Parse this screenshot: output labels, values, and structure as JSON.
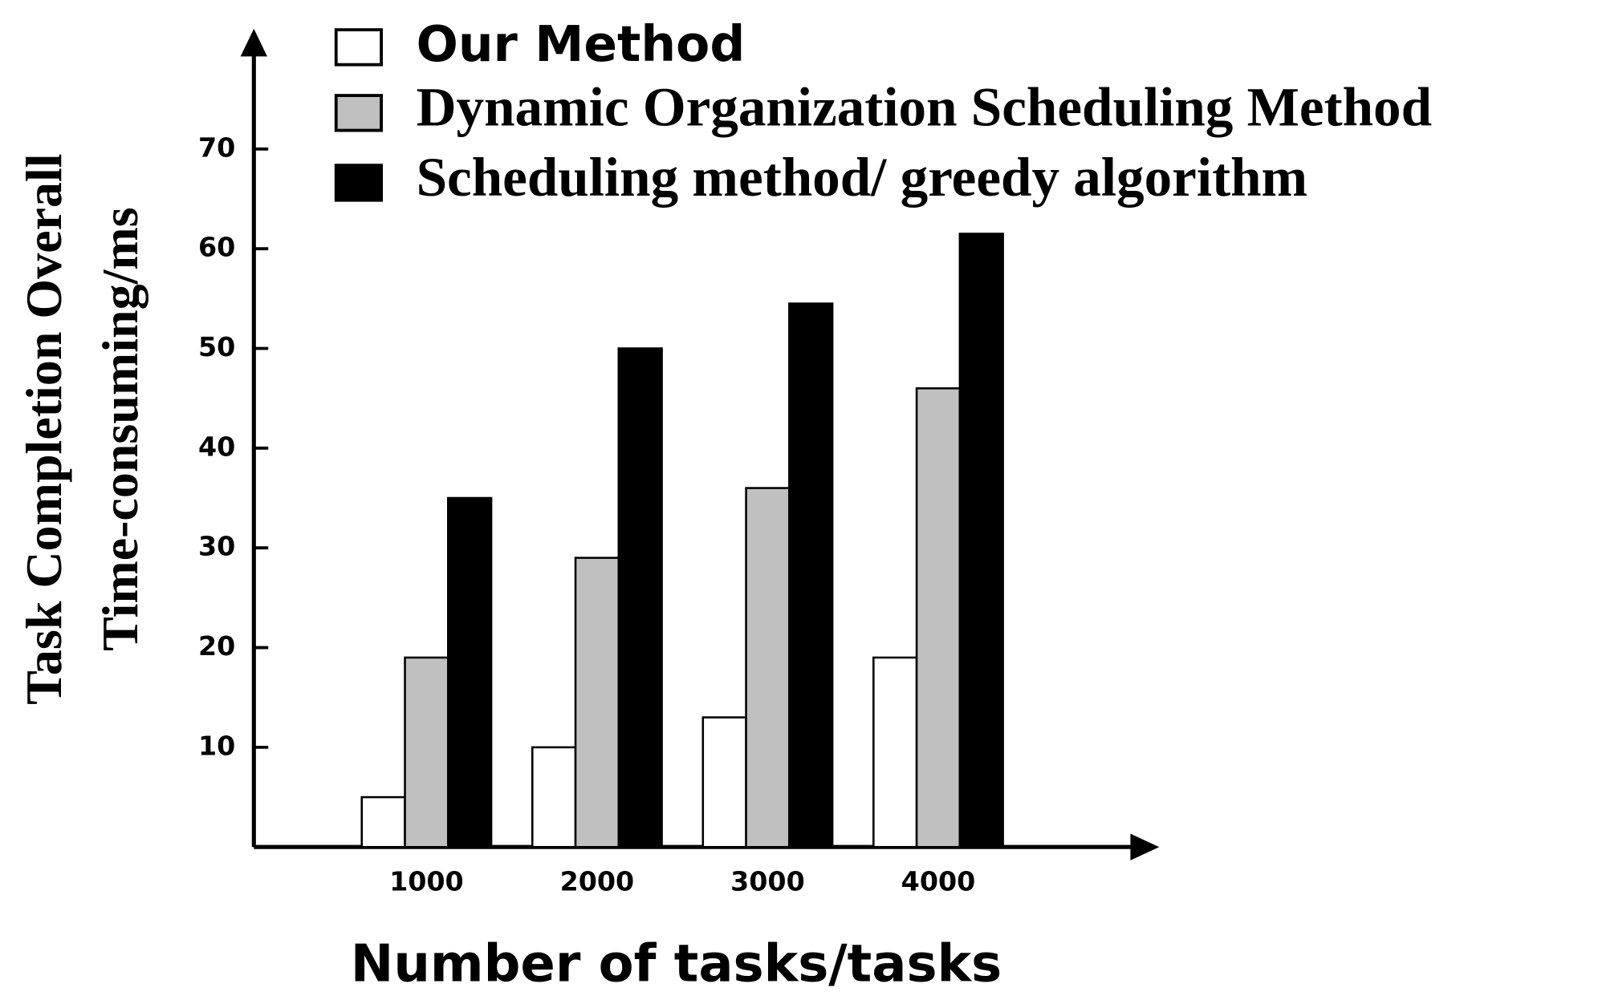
{
  "chart_data": {
    "type": "bar",
    "y_label_lines": [
      "Task Completion Overall",
      "Time-consuming/ms"
    ],
    "x_label": "Number of tasks/tasks",
    "categories": [
      "1000",
      "2000",
      "3000",
      "4000"
    ],
    "series": [
      {
        "name": "Our Method",
        "color": "#ffffff",
        "values": [
          5,
          10,
          13,
          19
        ]
      },
      {
        "name": "Dynamic Organization Scheduling Method",
        "color": "#c0c0c0",
        "values": [
          19,
          29,
          36,
          46
        ]
      },
      {
        "name": "Scheduling method/ greedy algorithm",
        "color": "#000000",
        "values": [
          35,
          50,
          54.5,
          61.5
        ]
      }
    ],
    "ylim": [
      0,
      80
    ],
    "yticks": [
      10,
      20,
      30,
      40,
      50,
      60,
      70
    ],
    "grid": false,
    "legend": "top"
  }
}
